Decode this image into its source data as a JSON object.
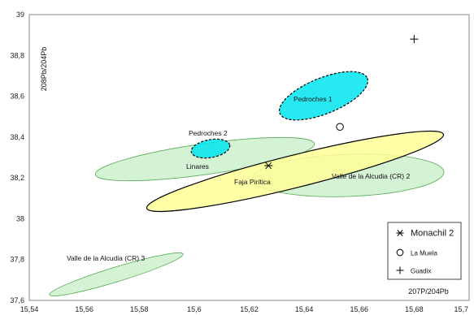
{
  "chart_data": {
    "type": "scatter",
    "title": "",
    "xlabel": "207P/204Pb",
    "ylabel": "208Pb/204Pb",
    "xlim": [
      15.54,
      15.7
    ],
    "ylim": [
      37.6,
      39.0
    ],
    "x_ticks": [
      "15,54",
      "15,56",
      "15,58",
      "15,6",
      "15,62",
      "15,64",
      "15,66",
      "15,68",
      "15,7"
    ],
    "y_ticks": [
      "37,6",
      "37,8",
      "38",
      "38,2",
      "38,4",
      "38,6",
      "38,8",
      "39"
    ],
    "grid": false,
    "legend_position": "bottom-right",
    "fields": [
      {
        "label": "Linares",
        "cx": 15.605,
        "cy": 38.3,
        "color": "#ccf0cc",
        "edge": "#55aa55",
        "dashed": false
      },
      {
        "label": "Valle de la Alcudia (CR) 2",
        "cx": 15.646,
        "cy": 38.22,
        "color": "#ccf0cc",
        "edge": "#55aa55",
        "dashed": false
      },
      {
        "label": "Valle de la Alcudia (CR) 3",
        "cx": 15.574,
        "cy": 37.74,
        "color": "#ccf0cc",
        "edge": "#55aa55",
        "dashed": false
      },
      {
        "label": "Faja Pirítica",
        "cx": 15.63,
        "cy": 38.235,
        "color": "#ffff99",
        "edge": "#000000",
        "dashed": false
      },
      {
        "label": "Pedroches 1",
        "cx": 15.638,
        "cy": 38.55,
        "color": "#00e5f0",
        "edge": "#000000",
        "dashed": true
      },
      {
        "label": "Pedroches 2",
        "cx": 15.612,
        "cy": 38.34,
        "color": "#00e5f0",
        "edge": "#000000",
        "dashed": true
      }
    ],
    "series": [
      {
        "name": "Monachil 2",
        "marker": "asterisk",
        "points": [
          {
            "x": 15.627,
            "y": 38.26
          }
        ]
      },
      {
        "name": "La Muela",
        "marker": "circle",
        "points": [
          {
            "x": 15.653,
            "y": 38.45
          }
        ]
      },
      {
        "name": "Guadix",
        "marker": "plus",
        "points": [
          {
            "x": 15.68,
            "y": 38.88
          }
        ]
      }
    ]
  }
}
